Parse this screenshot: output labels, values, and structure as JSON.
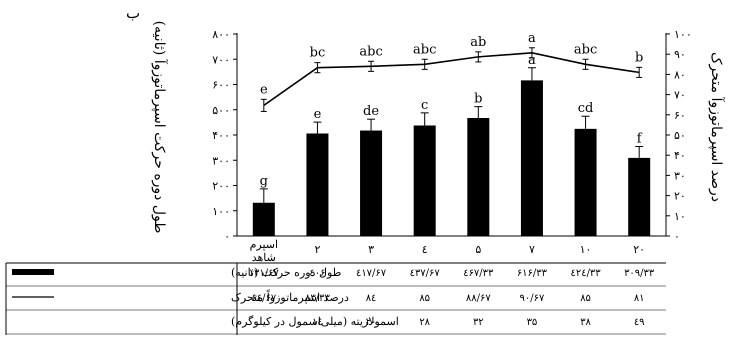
{
  "panel_label": "ب",
  "chart_data": {
    "type": "bar",
    "ylabel_left": "طول دوره حرکت اسپرماتوزوآ (ثانیه)",
    "ylabel_right": "درصد اسپرماتوزوآ متحرک",
    "ylim_left": [
      0,
      800
    ],
    "ylim_right": [
      0,
      100
    ],
    "yticks_left": [
      "۰",
      "۱۰۰",
      "۲۰۰",
      "۳۰۰",
      "۴۰۰",
      "۵۰۰",
      "۶۰۰",
      "۷۰۰",
      "۸۰۰"
    ],
    "yticks_right": [
      "۰",
      "۱۰",
      "۲۰",
      "۳۰",
      "۴۰",
      "۵۰",
      "۶۰",
      "۷۰",
      "۸۰",
      "۹۰",
      "۱۰۰"
    ],
    "categories": [
      "اسپرم شاهد",
      "۲",
      "۳",
      "٤",
      "۵",
      "۷",
      "۱۰",
      "۲۰"
    ],
    "series": [
      {
        "name": "طول دوره حرکت (ثانیه)",
        "type": "bar",
        "axis": "left",
        "values": [
          131.67,
          406,
          417.67,
          437.67,
          467.33,
          616.33,
          424.33,
          309.33
        ],
        "errors": [
          55,
          45,
          45,
          50,
          45,
          50,
          50,
          45
        ],
        "letters": [
          "g",
          "e",
          "de",
          "c",
          "b",
          "a",
          "cd",
          "f"
        ],
        "labels": [
          "۱۳۱/۶۷",
          "٤۰۶",
          "٤۱۷/۶۷",
          "٤۳۷/۶۷",
          "٤۶۷/۳۳",
          "۶۱۶/۳۳",
          "٤۲٤/۳۳",
          "۳۰۹/۳۳"
        ]
      },
      {
        "name": "درصد اسپرماتوزواً متحرک",
        "type": "line",
        "axis": "right",
        "values": [
          64.67,
          83.33,
          84,
          85,
          88.67,
          90.67,
          85,
          81
        ],
        "errors": [
          3,
          2.5,
          2.5,
          2.5,
          2.5,
          2.5,
          2.5,
          2.5
        ],
        "letters": [
          "e",
          "bc",
          "abc",
          "abc",
          "ab",
          "a",
          "abc",
          "b"
        ],
        "labels": [
          "۶٤/۶۷",
          "۸۳/۳۳",
          "۸٤",
          "۸۵",
          "۸۸/۶۷",
          "۹۰/۶۷",
          "۸۵",
          "۸۱"
        ]
      }
    ]
  },
  "table": {
    "rows": [
      {
        "label": "طول دوره حرکت (ثانیه)",
        "legend": "bar"
      },
      {
        "label": "درصد اسپرماتوزواً متحرک",
        "legend": "line"
      },
      {
        "label": "اسمولاریته (میلی‌اسمول در کیلوگرم)",
        "legend": "none",
        "values": [
          "",
          "۱٤",
          "۲۰",
          "۲۸",
          "۳۲",
          "۳۵",
          "۳۸",
          "٤۹"
        ]
      }
    ]
  }
}
